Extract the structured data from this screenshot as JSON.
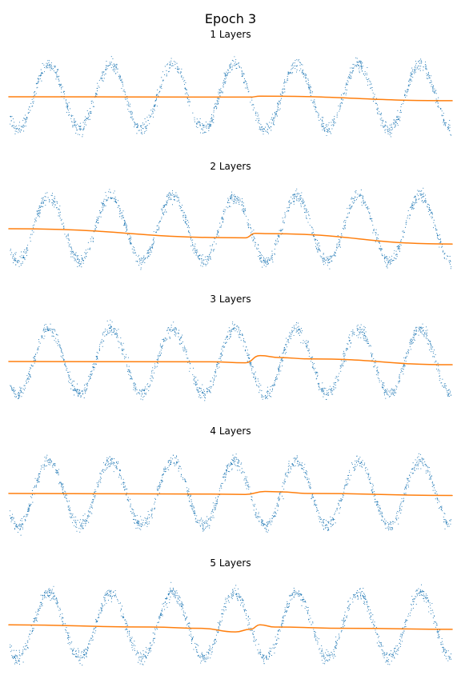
{
  "figure": {
    "suptitle": "Epoch 3"
  },
  "colors": {
    "data_points": "#1f77b4",
    "prediction_line": "#ff7f0e",
    "background": "#ffffff"
  },
  "chart_data": [
    {
      "type": "scatter+line",
      "title": "1 Layers",
      "axes_visible": false,
      "grid": false,
      "xlim": [
        -2.5,
        42.5
      ],
      "ylim": [
        -1.55,
        1.55
      ],
      "scatter": {
        "function": "sin(x)",
        "x_range": [
          -2.4,
          42.4
        ],
        "noise_std": 0.1,
        "n_points": 1500
      },
      "line": {
        "points": [
          [
            -2.5,
            0.0
          ],
          [
            22,
            -0.01
          ],
          [
            23,
            0.02
          ],
          [
            42.5,
            -0.12
          ]
        ]
      }
    },
    {
      "type": "scatter+line",
      "title": "2 Layers",
      "axes_visible": false,
      "grid": false,
      "xlim": [
        -2.5,
        42.5
      ],
      "ylim": [
        -1.55,
        1.55
      ],
      "scatter": {
        "function": "sin(x)",
        "x_range": [
          -2.4,
          42.4
        ],
        "noise_std": 0.1,
        "n_points": 1500
      },
      "line": {
        "points": [
          [
            -2.5,
            0.0
          ],
          [
            21.5,
            -0.28
          ],
          [
            22.5,
            -0.14
          ],
          [
            23.5,
            -0.15
          ],
          [
            42.5,
            -0.47
          ]
        ]
      }
    },
    {
      "type": "scatter+line",
      "title": "3 Layers",
      "axes_visible": false,
      "grid": false,
      "xlim": [
        -2.5,
        42.5
      ],
      "ylim": [
        -1.55,
        1.55
      ],
      "scatter": {
        "function": "sin(x)",
        "x_range": [
          -2.4,
          42.4
        ],
        "noise_std": 0.1,
        "n_points": 1500
      },
      "line": {
        "points": [
          [
            -2.5,
            0.0
          ],
          [
            18,
            -0.01
          ],
          [
            21.5,
            -0.04
          ],
          [
            23,
            0.18
          ],
          [
            25,
            0.12
          ],
          [
            28,
            0.08
          ],
          [
            42.5,
            -0.1
          ]
        ]
      }
    },
    {
      "type": "scatter+line",
      "title": "4 Layers",
      "axes_visible": false,
      "grid": false,
      "xlim": [
        -2.5,
        42.5
      ],
      "ylim": [
        -1.55,
        1.55
      ],
      "scatter": {
        "function": "sin(x)",
        "x_range": [
          -2.4,
          42.4
        ],
        "noise_std": 0.1,
        "n_points": 1500
      },
      "line": {
        "points": [
          [
            -2.5,
            0.0
          ],
          [
            18,
            -0.02
          ],
          [
            21.5,
            -0.03
          ],
          [
            23.5,
            0.06
          ],
          [
            25,
            0.05
          ],
          [
            28,
            0.0
          ],
          [
            42.5,
            -0.06
          ]
        ]
      }
    },
    {
      "type": "scatter+line",
      "title": "5 Layers",
      "axes_visible": false,
      "grid": false,
      "xlim": [
        -2.5,
        42.5
      ],
      "ylim": [
        -1.55,
        1.55
      ],
      "scatter": {
        "function": "sin(x)",
        "x_range": [
          -2.4,
          42.4
        ],
        "noise_std": 0.1,
        "n_points": 1500
      },
      "line": {
        "points": [
          [
            -2.5,
            0.02
          ],
          [
            12,
            -0.05
          ],
          [
            17,
            -0.09
          ],
          [
            20.5,
            -0.2
          ],
          [
            22,
            -0.12
          ],
          [
            23,
            0.02
          ],
          [
            24.5,
            -0.05
          ],
          [
            32,
            -0.09
          ],
          [
            42.5,
            -0.12
          ]
        ]
      }
    }
  ]
}
